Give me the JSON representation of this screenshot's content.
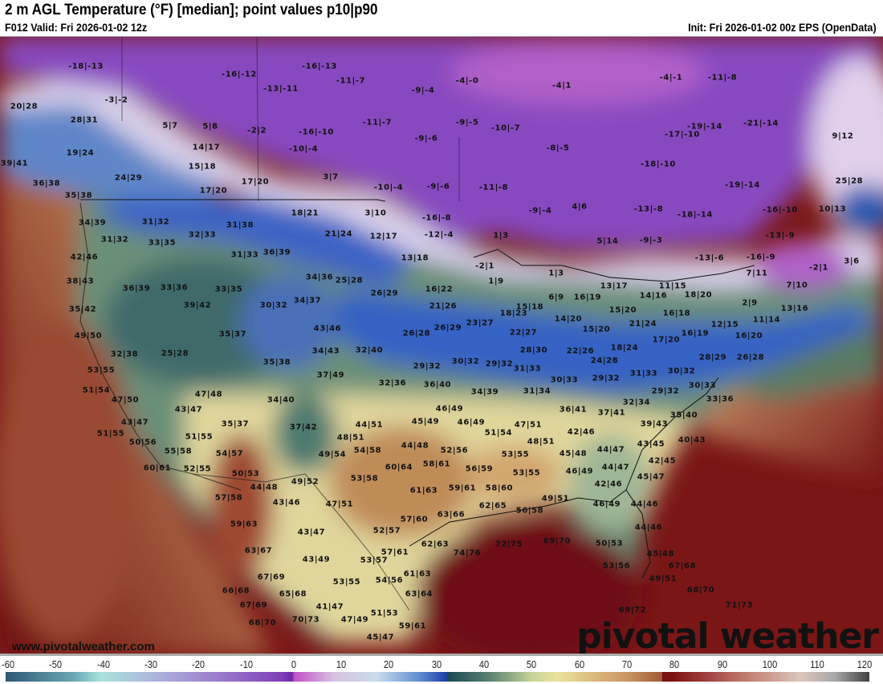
{
  "header": {
    "title": "2 m AGL Temperature (°F) [median]; point values p10|p90",
    "valid": "F012 Valid: Fri 2026-01-02 12z",
    "init": "Init: Fri 2026-01-02 00z EPS (OpenData)"
  },
  "footer": {
    "website": "www.pivotalweather.com",
    "logo": "pivotal weather"
  },
  "colorbar": {
    "ticks": [
      "-60",
      "-50",
      "-40",
      "-30",
      "-20",
      "-10",
      "0",
      "10",
      "20",
      "30",
      "40",
      "50",
      "60",
      "70",
      "80",
      "90",
      "100",
      "110",
      "120"
    ]
  },
  "point_values": [
    "-18|-13",
    "-16|-13",
    "-16|-12",
    "-11|-7",
    "-4|-0",
    "-13|-11",
    "-9|-4",
    "-4|1",
    "-4|-1",
    "-11|-8",
    "20|28",
    "-3|-2",
    "28|31",
    "5|7",
    "5|8",
    "-2|2",
    "-16|-10",
    "-11|-7",
    "-9|-5",
    "-10|-7",
    "-9|-6",
    "-10|-4",
    "-8|-5",
    "-19|-14",
    "-21|-14",
    "-17|-10",
    "9|12",
    "19|24",
    "14|17",
    "15|18",
    "-18|-10",
    "24|29",
    "3|7",
    "-10|-4",
    "-9|-6",
    "-11|-8",
    "-19|-14",
    "25|28",
    "39|41",
    "36|38",
    "17|20",
    "17|20",
    "35|38",
    "-16|-8",
    "-12|-4",
    "3|10",
    "4|6",
    "-9|-4",
    "-13|-8",
    "-18|-14",
    "-16|-10",
    "10|13",
    "-9|-3",
    "5|14",
    "-13|-6",
    "-16|-9",
    "-13|-9",
    "-2|1",
    "3|6",
    "18|21",
    "21|24",
    "12|17",
    "13|18",
    "34|39",
    "31|32",
    "32|33",
    "31|38",
    "31|32",
    "33|35",
    "42|46",
    "31|33",
    "36|39",
    "1|3",
    "-2|1",
    "1|9",
    "1|3",
    "38|43",
    "36|39",
    "33|36",
    "33|35",
    "34|36",
    "25|28",
    "34|37",
    "30|32",
    "35|42",
    "39|42",
    "16|22",
    "26|29",
    "21|26",
    "6|9",
    "16|19",
    "13|17",
    "11|15",
    "7|11",
    "7|10",
    "18|20",
    "14|16",
    "15|20",
    "16|18",
    "2|9",
    "13|16",
    "11|14",
    "12|15",
    "16|19",
    "16|20",
    "17|20",
    "21|24",
    "15|18",
    "14|20",
    "18|23",
    "23|27",
    "26|29",
    "26|28",
    "22|27",
    "15|20",
    "18|24",
    "22|26",
    "28|30",
    "49|50",
    "35|37",
    "43|46",
    "32|38",
    "25|28",
    "34|43",
    "32|40",
    "35|38",
    "37|49",
    "28|29",
    "26|28",
    "24|28",
    "31|33",
    "29|32",
    "30|32",
    "29|32",
    "30|33",
    "33|36",
    "32|34",
    "29|32",
    "30|32",
    "29|32",
    "31|33",
    "30|33",
    "32|36",
    "36|40",
    "34|39",
    "31|34",
    "53|55",
    "51|54",
    "47|50",
    "47|48",
    "34|40",
    "43|47",
    "36|41",
    "37|41",
    "35|40",
    "46|49",
    "45|49",
    "46|49",
    "44|51",
    "43|47",
    "35|37",
    "37|42",
    "47|51",
    "39|43",
    "51|55",
    "51|55",
    "50|56",
    "55|58",
    "48|51",
    "44|48",
    "52|56",
    "51|54",
    "48|51",
    "42|46",
    "43|45",
    "40|43",
    "45|48",
    "44|47",
    "54|57",
    "49|54",
    "54|58",
    "53|55",
    "42|45",
    "60|61",
    "52|55",
    "50|53",
    "60|64",
    "58|61",
    "56|59",
    "46|49",
    "44|47",
    "45|47",
    "53|58",
    "53|55",
    "49|52",
    "44|48",
    "42|46",
    "61|63",
    "59|61",
    "58|60",
    "57|58",
    "43|46",
    "47|51",
    "49|51",
    "46|49",
    "44|46",
    "63|66",
    "62|65",
    "56|58",
    "59|63",
    "57|60",
    "44|46",
    "43|47",
    "52|57",
    "72|75",
    "69|70",
    "74|76",
    "63|67",
    "57|61",
    "62|63",
    "50|53",
    "45|48",
    "43|49",
    "53|57",
    "67|68",
    "67|69",
    "61|63",
    "53|56",
    "49|51",
    "53|55",
    "54|56",
    "66|68",
    "65|68",
    "63|64",
    "68|70",
    "67|69",
    "41|47",
    "51|53",
    "71|73",
    "70|73",
    "47|49",
    "69|72",
    "68|70",
    "59|61",
    "45|47"
  ]
}
